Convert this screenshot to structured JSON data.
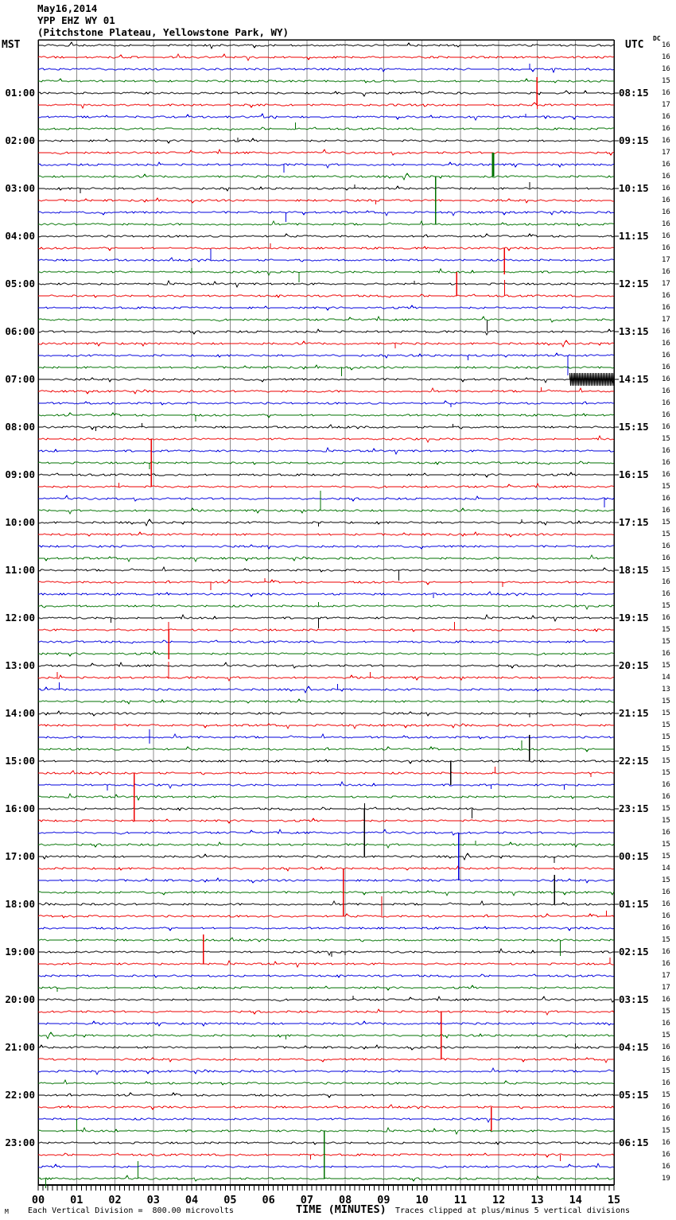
{
  "header": {
    "date": "May16,2014",
    "station": "YPP EHZ WY 01",
    "location": "(Pitchstone Plateau, Yellowstone Park, WY)"
  },
  "axes": {
    "left_tz": "MST",
    "right_tz": "UTC",
    "dc_label": "DC",
    "x_label": "TIME (MINUTES)",
    "x_tick_labels": [
      "00",
      "01",
      "02",
      "03",
      "04",
      "05",
      "06",
      "07",
      "08",
      "09",
      "10",
      "11",
      "12",
      "13",
      "14",
      "15"
    ]
  },
  "footer": {
    "left_note": "Each Vertical Division =  800.00 microvolts",
    "right_note": "Traces clipped at plus/minus 5 vertical divisions",
    "corner_mark": "M"
  },
  "chart_data": {
    "type": "line",
    "subtype": "helicorder-seismogram",
    "minutes_per_line": 15,
    "num_lines": 96,
    "x_range_minutes": [
      0,
      15
    ],
    "trace_color_cycle": [
      "black",
      "red",
      "blue",
      "green"
    ],
    "colors": {
      "black": "#000000",
      "red": "#ee0000",
      "blue": "#0000dd",
      "green": "#007200",
      "grid": "#8c8c8c"
    },
    "vertical_division_microvolts": 800.0,
    "clip_divisions": 5,
    "left_times_mst": [
      "01:00",
      "02:00",
      "03:00",
      "04:00",
      "05:00",
      "06:00",
      "07:00",
      "08:00",
      "09:00",
      "10:00",
      "11:00",
      "12:00",
      "13:00",
      "14:00",
      "15:00",
      "16:00",
      "17:00",
      "18:00",
      "19:00",
      "20:00",
      "21:00",
      "22:00",
      "23:00"
    ],
    "right_times_utc": [
      "08:15",
      "09:15",
      "10:15",
      "11:15",
      "12:15",
      "13:15",
      "14:15",
      "15:15",
      "16:15",
      "17:15",
      "18:15",
      "19:15",
      "20:15",
      "21:15",
      "22:15",
      "23:15",
      "00:15",
      "01:15",
      "02:15",
      "03:15",
      "04:15",
      "05:15",
      "06:15"
    ],
    "dc_offsets": [
      16,
      16,
      16,
      15,
      16,
      17,
      16,
      16,
      16,
      17,
      16,
      16,
      16,
      16,
      16,
      16,
      16,
      16,
      17,
      16,
      17,
      16,
      16,
      17,
      16,
      16,
      16,
      16,
      16,
      16,
      16,
      16,
      16,
      15,
      16,
      16,
      16,
      15,
      16,
      16,
      15,
      15,
      16,
      16,
      15,
      16,
      16,
      15,
      16,
      15,
      15,
      16,
      15,
      14,
      13,
      15,
      15,
      15,
      15,
      15,
      15,
      15,
      16,
      16,
      15,
      15,
      16,
      15,
      15,
      14,
      15,
      16,
      16,
      16,
      16,
      15,
      16,
      16,
      17,
      17,
      16,
      15,
      16,
      15,
      16,
      16,
      15,
      16,
      15,
      16,
      16,
      15,
      16,
      16,
      16,
      19
    ],
    "events": [
      {
        "r": 3,
        "m": 12.8,
        "a": 7
      },
      {
        "r": 6,
        "m": 13.0,
        "a": 35
      },
      {
        "r": 6,
        "m": 13.0,
        "a": -5
      },
      {
        "r": 7,
        "m": 12.7,
        "a": 4
      },
      {
        "r": 8,
        "m": 6.7,
        "a": 8
      },
      {
        "r": 9,
        "m": 5.2,
        "a": 4
      },
      {
        "r": 11,
        "m": 6.4,
        "a": -10
      },
      {
        "r": 12,
        "m": 11.85,
        "a": 30,
        "w": 3
      },
      {
        "r": 12,
        "m": 10.35,
        "a": -30
      },
      {
        "r": 16,
        "m": 10.35,
        "a": 30
      },
      {
        "r": 13,
        "m": 1.1,
        "a": -6
      },
      {
        "r": 13,
        "m": 8.25,
        "a": 5
      },
      {
        "r": 13,
        "m": 12.8,
        "a": 8
      },
      {
        "r": 14,
        "m": 8.8,
        "a": -5
      },
      {
        "r": 15,
        "m": 6.45,
        "a": -12
      },
      {
        "r": 18,
        "m": 6.05,
        "a": 6
      },
      {
        "r": 18,
        "m": 12.15,
        "a": -33
      },
      {
        "r": 19,
        "m": 4.5,
        "a": 14
      },
      {
        "r": 20,
        "m": 4.0,
        "a": 5
      },
      {
        "r": 20,
        "m": 6.8,
        "a": -13
      },
      {
        "r": 21,
        "m": 9.8,
        "a": 4
      },
      {
        "r": 22,
        "m": 10.9,
        "a": 30
      },
      {
        "r": 22,
        "m": 12.15,
        "a": 20
      },
      {
        "r": 25,
        "m": 11.7,
        "a": 14
      },
      {
        "r": 26,
        "m": 9.3,
        "a": -6
      },
      {
        "r": 27,
        "m": 11.2,
        "a": -6
      },
      {
        "r": 27,
        "m": 13.8,
        "a": -25
      },
      {
        "r": 28,
        "m": 7.9,
        "a": -11
      },
      {
        "r": 30,
        "m": 13.1,
        "a": 5
      },
      {
        "r": 31,
        "m": 10.75,
        "a": -5
      },
      {
        "r": 32,
        "m": 4.1,
        "a": -8
      },
      {
        "r": 33,
        "m": 1.5,
        "a": -5
      },
      {
        "r": 33,
        "m": 10.8,
        "a": 4
      },
      {
        "r": 33,
        "m": 2.7,
        "a": 5
      },
      {
        "r": 34,
        "m": 2.95,
        "a": -37
      },
      {
        "r": 38,
        "m": 2.95,
        "a": 37
      },
      {
        "r": 36,
        "m": 2.9,
        "a": -8
      },
      {
        "r": 38,
        "m": 2.1,
        "a": 5
      },
      {
        "r": 39,
        "m": 14.75,
        "a": -11
      },
      {
        "r": 40,
        "m": 7.35,
        "a": 25
      },
      {
        "r": 41,
        "m": 7.3,
        "a": -5
      },
      {
        "r": 41,
        "m": 12.6,
        "a": 4
      },
      {
        "r": 45,
        "m": 9.4,
        "a": -13
      },
      {
        "r": 46,
        "m": 4.5,
        "a": -10
      },
      {
        "r": 46,
        "m": 5.9,
        "a": 5
      },
      {
        "r": 46,
        "m": 12.1,
        "a": -6
      },
      {
        "r": 47,
        "m": 10.3,
        "a": -5
      },
      {
        "r": 48,
        "m": 7.3,
        "a": 5
      },
      {
        "r": 49,
        "m": 7.3,
        "a": -13
      },
      {
        "r": 49,
        "m": 1.9,
        "a": -6
      },
      {
        "r": 50,
        "m": 3.4,
        "a": -37
      },
      {
        "r": 50,
        "m": 3.4,
        "a": 10
      },
      {
        "r": 54,
        "m": 3.4,
        "a": 20
      },
      {
        "r": 50,
        "m": 10.85,
        "a": 10
      },
      {
        "r": 54,
        "m": 0.5,
        "a": 7
      },
      {
        "r": 54,
        "m": 8.65,
        "a": 7
      },
      {
        "r": 55,
        "m": 0.55,
        "a": 9
      },
      {
        "r": 55,
        "m": 7.8,
        "a": 7
      },
      {
        "r": 58,
        "m": 2.0,
        "a": -6
      },
      {
        "r": 59,
        "m": 2.9,
        "a": 10
      },
      {
        "r": 59,
        "m": 2.9,
        "a": -8
      },
      {
        "r": 60,
        "m": 12.6,
        "a": 11
      },
      {
        "r": 57,
        "m": 12.8,
        "a": -5
      },
      {
        "r": 61,
        "m": 12.8,
        "a": 33
      },
      {
        "r": 61,
        "m": 10.75,
        "a": -30
      },
      {
        "r": 62,
        "m": 11.9,
        "a": 8
      },
      {
        "r": 62,
        "m": 14.4,
        "a": -5
      },
      {
        "r": 62,
        "m": 2.5,
        "a": -37
      },
      {
        "r": 66,
        "m": 2.5,
        "a": 37
      },
      {
        "r": 63,
        "m": 1.8,
        "a": -7
      },
      {
        "r": 63,
        "m": 11.8,
        "a": -5
      },
      {
        "r": 63,
        "m": 13.7,
        "a": -6
      },
      {
        "r": 65,
        "m": 8.5,
        "a": 7
      },
      {
        "r": 65,
        "m": 8.5,
        "a": -37
      },
      {
        "r": 69,
        "m": 8.5,
        "a": 37
      },
      {
        "r": 65,
        "m": 11.3,
        "a": -12
      },
      {
        "r": 67,
        "m": 10.95,
        "a": -30
      },
      {
        "r": 71,
        "m": 10.95,
        "a": 37
      },
      {
        "r": 68,
        "m": 11.4,
        "a": 5
      },
      {
        "r": 70,
        "m": 7.95,
        "a": -37
      },
      {
        "r": 74,
        "m": 7.95,
        "a": 37
      },
      {
        "r": 74,
        "m": 8.95,
        "a": 25
      },
      {
        "r": 69,
        "m": 13.45,
        "a": -8
      },
      {
        "r": 73,
        "m": 13.45,
        "a": 37
      },
      {
        "r": 74,
        "m": 14.8,
        "a": 7
      },
      {
        "r": 76,
        "m": 13.6,
        "a": -20
      },
      {
        "r": 77,
        "m": 7.65,
        "a": -6
      },
      {
        "r": 77,
        "m": 8.0,
        "a": -4
      },
      {
        "r": 78,
        "m": 4.3,
        "a": 37
      },
      {
        "r": 78,
        "m": 14.9,
        "a": 8
      },
      {
        "r": 80,
        "m": 0.5,
        "a": -5
      },
      {
        "r": 81,
        "m": 8.2,
        "a": 5
      },
      {
        "r": 82,
        "m": 10.5,
        "a": -37
      },
      {
        "r": 86,
        "m": 10.5,
        "a": 37
      },
      {
        "r": 84,
        "m": 6.45,
        "a": -5
      },
      {
        "r": 85,
        "m": 14.0,
        "a": 5
      },
      {
        "r": 90,
        "m": 11.8,
        "a": -30
      },
      {
        "r": 92,
        "m": 1.0,
        "a": 15
      },
      {
        "r": 92,
        "m": 7.45,
        "a": -30
      },
      {
        "r": 96,
        "m": 7.45,
        "a": 37
      },
      {
        "r": 96,
        "m": 2.6,
        "a": 22
      },
      {
        "r": 96,
        "m": 0.2,
        "a": -12
      },
      {
        "r": 94,
        "m": 7.1,
        "a": -6
      },
      {
        "r": 94,
        "m": 13.6,
        "a": -8
      }
    ],
    "bursts": [
      {
        "r": 29,
        "m1": 13.85,
        "m2": 15.0,
        "a": 8
      }
    ]
  }
}
